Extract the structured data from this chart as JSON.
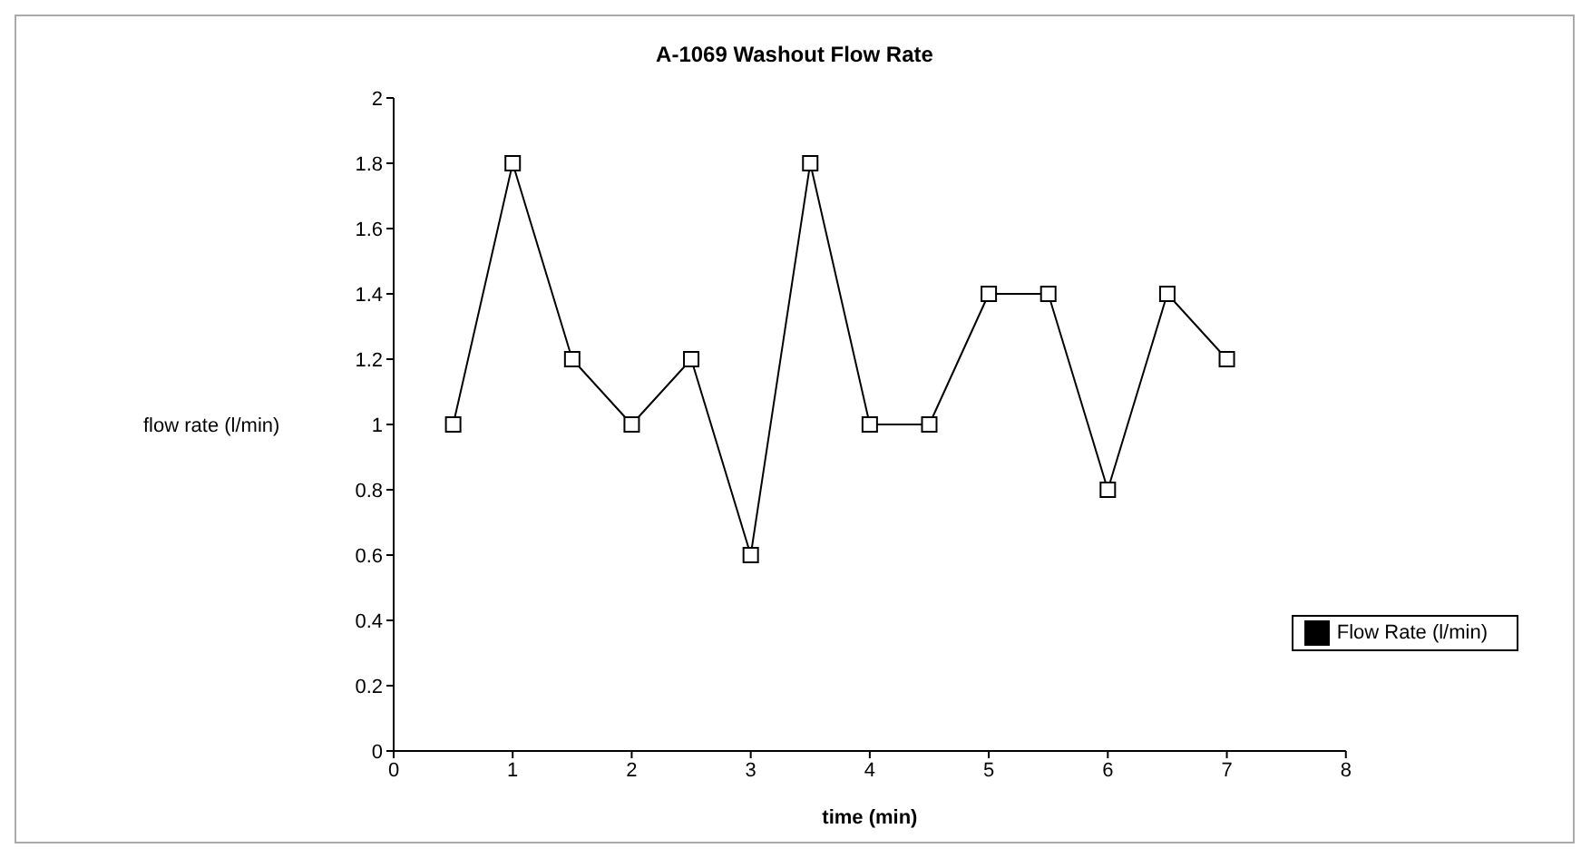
{
  "chart_data": {
    "type": "line",
    "title": "A-1069 Washout Flow Rate",
    "xlabel": "time (min)",
    "ylabel": "flow rate (l/min)",
    "x": [
      0.5,
      1,
      1.5,
      2,
      2.5,
      3,
      3.5,
      4,
      4.5,
      5,
      5.5,
      6,
      6.5,
      7
    ],
    "series": [
      {
        "name": "Flow Rate (l/min)",
        "color": "#000000",
        "values": [
          1,
          1.8,
          1.2,
          1,
          1.2,
          0.6,
          1.8,
          1,
          1,
          1.4,
          1.4,
          0.8,
          1.4,
          1.2
        ]
      }
    ],
    "xlim": [
      0,
      8
    ],
    "xticks": [
      0,
      1,
      2,
      3,
      4,
      5,
      6,
      7,
      8
    ],
    "ylim": [
      0,
      2
    ],
    "yticks": [
      0,
      0.2,
      0.4,
      0.6,
      0.8,
      1,
      1.2,
      1.4,
      1.6,
      1.8,
      2
    ],
    "grid": false,
    "legend": "right",
    "marker": "square",
    "line_style": "solid"
  }
}
